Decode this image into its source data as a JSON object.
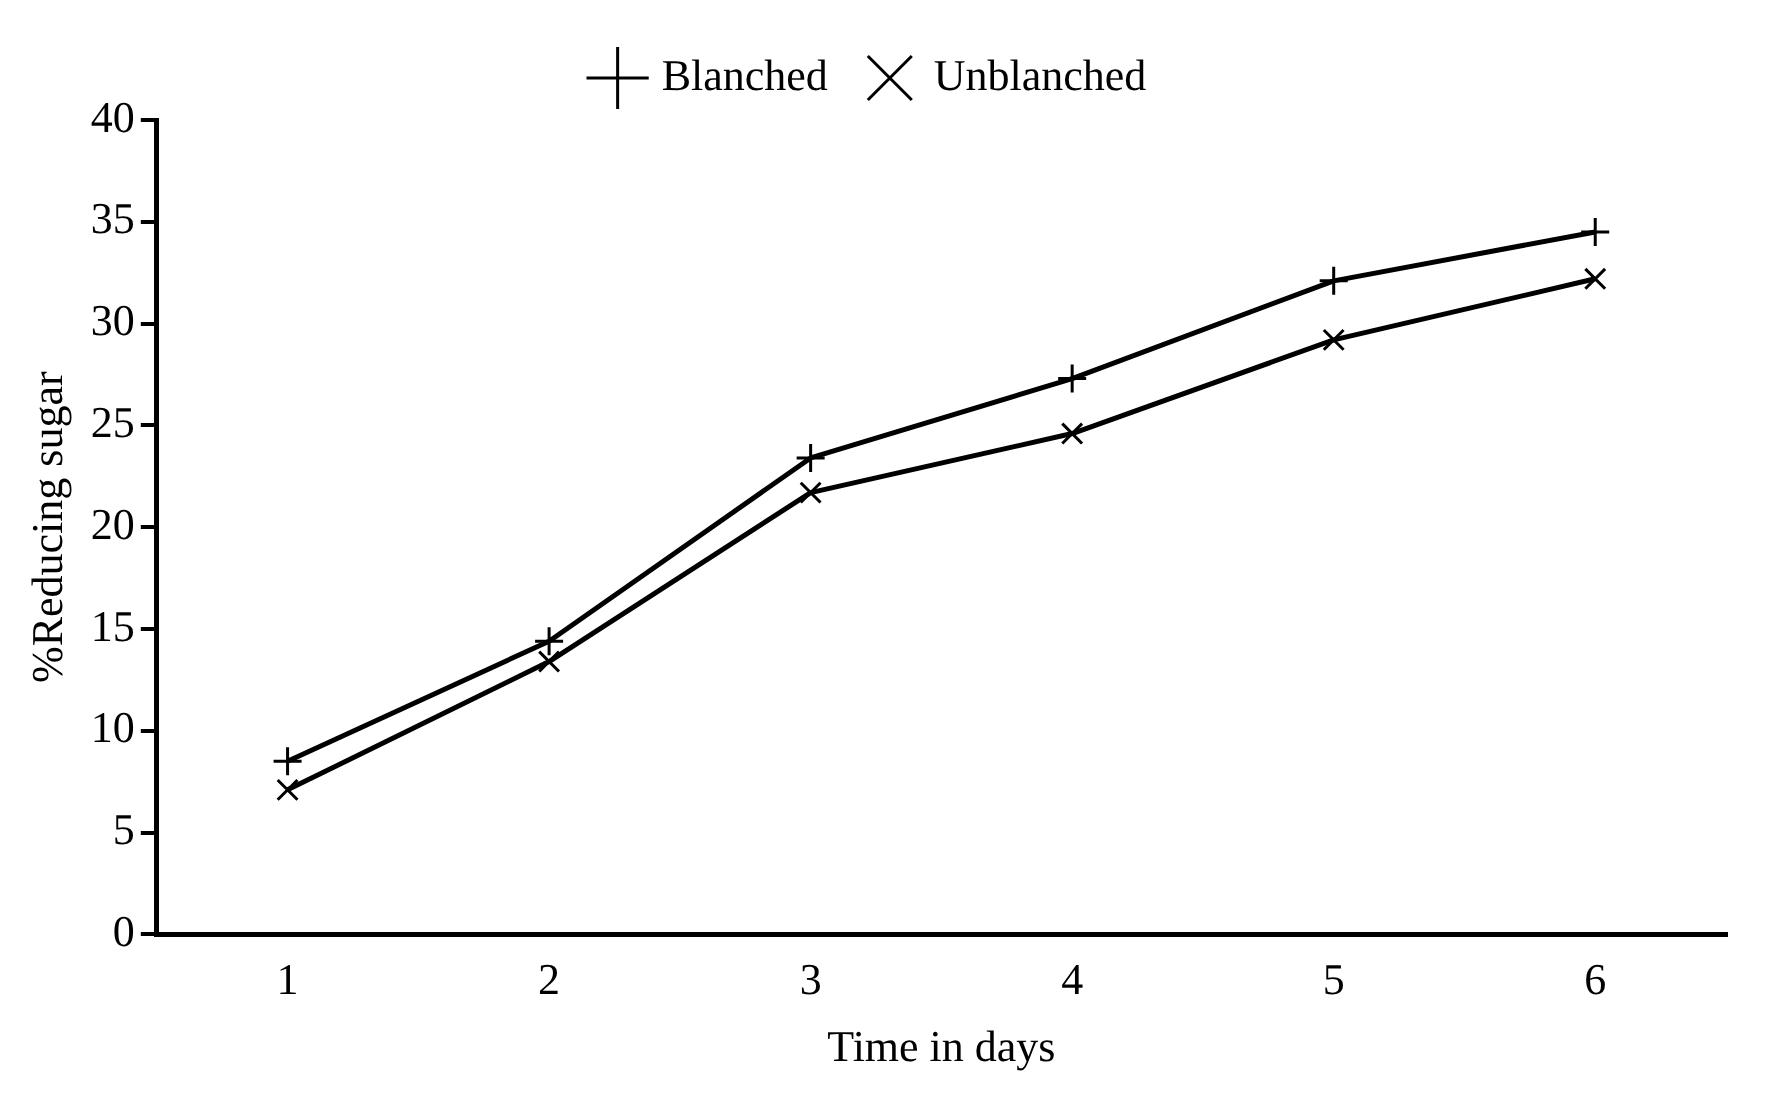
{
  "chart_data": {
    "type": "line",
    "xlabel": "Time in days",
    "ylabel": "%Reducing sugar",
    "categories": [
      "1",
      "2",
      "3",
      "4",
      "5",
      "6"
    ],
    "series": [
      {
        "name": "Blanched",
        "color": "#000000",
        "marker": "plus",
        "values": [
          8.5,
          14.4,
          23.4,
          27.3,
          32.1,
          34.5
        ]
      },
      {
        "name": "Unblanched",
        "color": "#000000",
        "marker": "cross",
        "values": [
          7.1,
          13.4,
          21.7,
          24.6,
          29.2,
          32.2
        ]
      }
    ],
    "ylim": [
      0,
      40
    ],
    "yticks": [
      0,
      5,
      10,
      15,
      20,
      25,
      30,
      35,
      40
    ],
    "grid": false,
    "legend": "top",
    "line_style": "solid"
  }
}
